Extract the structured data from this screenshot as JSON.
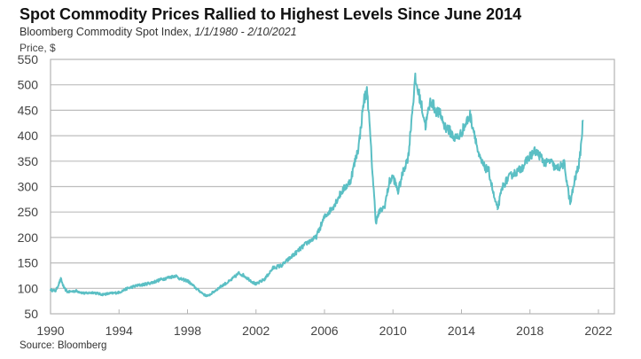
{
  "chart_data": {
    "type": "line",
    "title": "Spot Commodity Prices Rallied to Highest Levels Since June 2014",
    "subtitle_prefix": "Bloomberg Commodity Spot Index, ",
    "subtitle_range": "1/1/1980 - 2/10/2021",
    "ylabel": "Price, $",
    "xlabel": "",
    "source": "Source: Bloomberg",
    "xlim": [
      1990,
      2023
    ],
    "ylim": [
      50,
      550
    ],
    "xticks": [
      1990,
      1994,
      1998,
      2002,
      2006,
      2010,
      2014,
      2018,
      2022
    ],
    "yticks": [
      50,
      100,
      150,
      200,
      250,
      300,
      350,
      400,
      450,
      500,
      550
    ],
    "grid": "horizontal",
    "legend": "none",
    "color": "#5bbfc4",
    "series": [
      {
        "name": "Bloomberg Commodity Spot Index",
        "x": [
          1990.0,
          1990.3,
          1990.6,
          1990.8,
          1991.0,
          1991.5,
          1992.0,
          1992.5,
          1993.0,
          1993.5,
          1994.0,
          1994.5,
          1995.0,
          1995.5,
          1996.0,
          1996.5,
          1997.0,
          1997.3,
          1997.6,
          1998.0,
          1998.5,
          1999.0,
          1999.2,
          1999.6,
          2000.0,
          2000.5,
          2001.0,
          2001.3,
          2001.7,
          2002.0,
          2002.5,
          2003.0,
          2003.5,
          2004.0,
          2004.5,
          2005.0,
          2005.5,
          2006.0,
          2006.5,
          2007.0,
          2007.5,
          2008.0,
          2008.3,
          2008.5,
          2008.8,
          2009.0,
          2009.2,
          2009.5,
          2009.8,
          2010.0,
          2010.3,
          2010.6,
          2010.9,
          2011.1,
          2011.3,
          2011.6,
          2011.9,
          2012.2,
          2012.5,
          2012.8,
          2013.0,
          2013.3,
          2013.6,
          2013.9,
          2014.2,
          2014.5,
          2014.8,
          2015.0,
          2015.3,
          2015.6,
          2015.9,
          2016.1,
          2016.4,
          2016.7,
          2017.0,
          2017.3,
          2017.6,
          2018.0,
          2018.3,
          2018.6,
          2018.9,
          2019.2,
          2019.5,
          2019.8,
          2020.0,
          2020.2,
          2020.35,
          2020.6,
          2020.9,
          2021.1
        ],
        "y": [
          97,
          95,
          118,
          100,
          93,
          95,
          90,
          92,
          88,
          90,
          92,
          100,
          105,
          108,
          112,
          118,
          122,
          125,
          118,
          115,
          100,
          87,
          85,
          95,
          105,
          115,
          130,
          125,
          115,
          108,
          118,
          140,
          145,
          160,
          175,
          190,
          200,
          240,
          260,
          290,
          310,
          380,
          470,
          490,
          330,
          230,
          250,
          260,
          310,
          320,
          290,
          330,
          360,
          440,
          510,
          470,
          420,
          470,
          450,
          440,
          420,
          410,
          395,
          400,
          420,
          440,
          400,
          360,
          340,
          330,
          280,
          255,
          300,
          315,
          325,
          330,
          340,
          360,
          370,
          360,
          345,
          350,
          335,
          340,
          345,
          300,
          265,
          310,
          350,
          430
        ]
      }
    ]
  }
}
